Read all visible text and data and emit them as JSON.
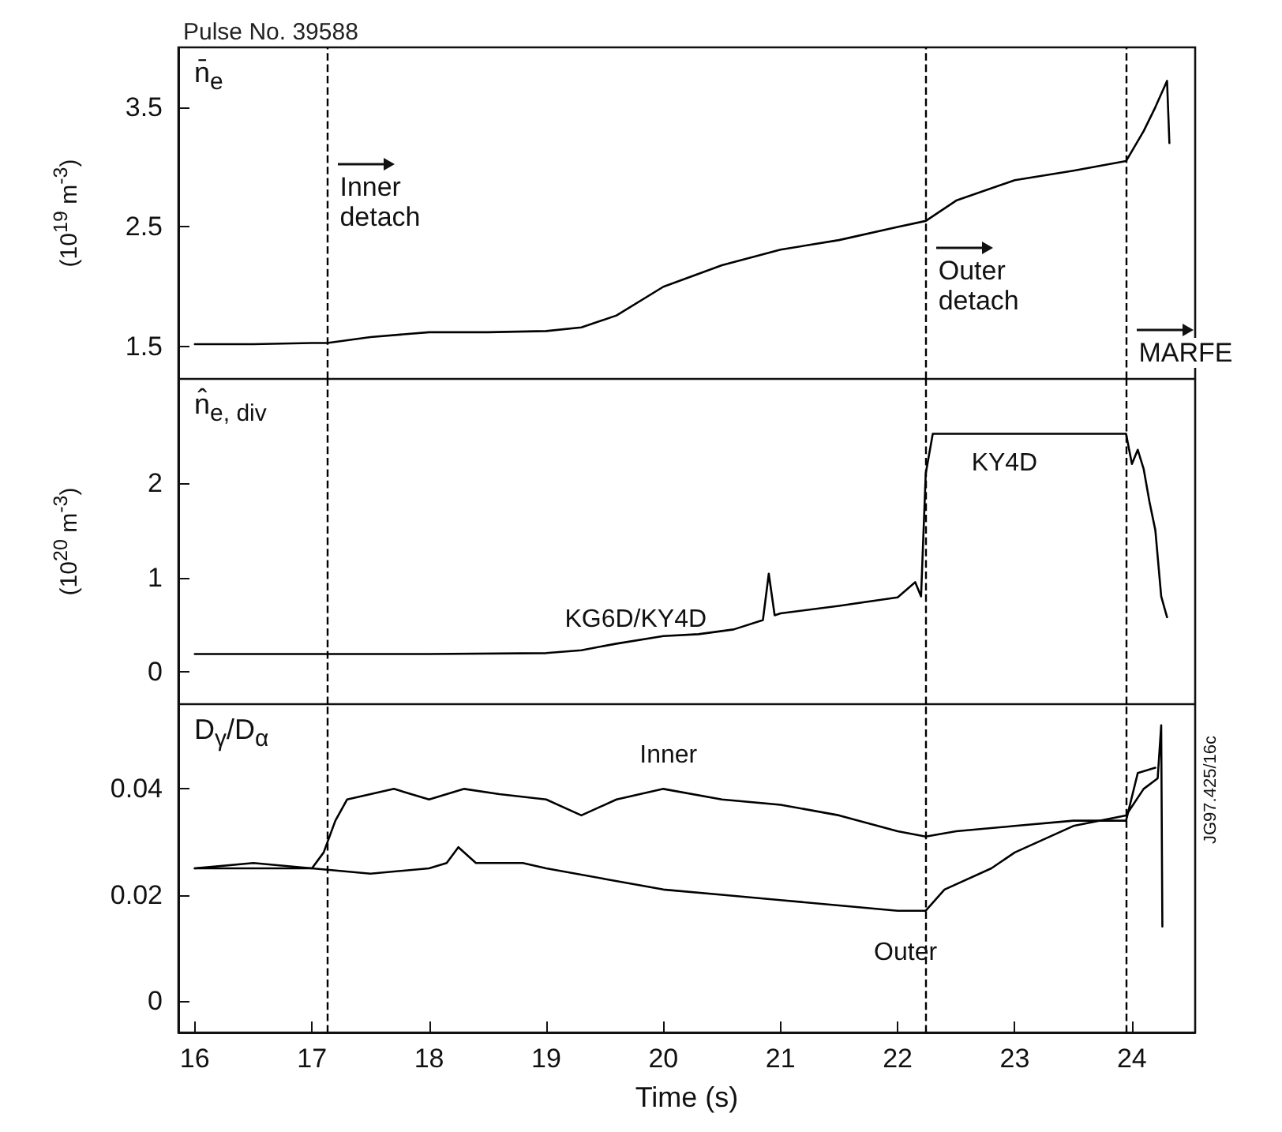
{
  "chart_data": [
    {
      "type": "line",
      "title": "Pulse No. 39588",
      "ylabel": "(10$^{19}$ m$^{-3}$)",
      "annotations": [
        "n̄$_{e}$"
      ],
      "series": [
        {
          "color": "#000000",
          "x": [
            16,
            16.5,
            17,
            17.13,
            17.5,
            18,
            18.5,
            19,
            19.3,
            19.6,
            20,
            20.5,
            21,
            21.5,
            22,
            22.24,
            22.5,
            23,
            23.5,
            23.95,
            24.1,
            24.2,
            24.3,
            24.32
          ],
          "values": [
            1.52,
            1.52,
            1.53,
            1.53,
            1.58,
            1.62,
            1.62,
            1.63,
            1.66,
            1.76,
            2.0,
            2.18,
            2.31,
            2.39,
            2.5,
            2.55,
            2.72,
            2.89,
            2.97,
            3.05,
            3.3,
            3.5,
            3.72,
            3.2
          ]
        }
      ],
      "xlim": [
        15.86,
        24.54
      ],
      "xticks": [
        16,
        17,
        18,
        19,
        20,
        21,
        22,
        23,
        24
      ],
      "ylim": [
        1.23,
        4.0
      ],
      "yticks": [
        1.5,
        2.5,
        3.5
      ],
      "tick_labels": "y",
      "grid": false,
      "legend": false,
      "marker": "none",
      "line_style": "solid",
      "ref_lines": [
        {
          "axis": "x",
          "value": 17.13,
          "label": "Inner detach",
          "line_style": "dashed",
          "color": "#000000"
        },
        {
          "axis": "x",
          "value": 22.24,
          "label": "Outer detach",
          "line_style": "dashed",
          "color": "#000000"
        },
        {
          "axis": "x",
          "value": 23.95,
          "label": "MARFE",
          "line_style": "dashed",
          "color": "#000000"
        }
      ]
    },
    {
      "type": "line",
      "ylabel": "(10$^{20}$ m$^{-3}$)",
      "annotations": [
        "n̂$_{e, div}$",
        "KG6D/KY4D",
        "KY4D"
      ],
      "series": [
        {
          "color": "#000000",
          "x": [
            16,
            17,
            18,
            19,
            19.3,
            19.6,
            20,
            20.3,
            20.6,
            20.85,
            20.9,
            20.95,
            21,
            21.5,
            22,
            22.15,
            22.2,
            22.24,
            22.3,
            22.6,
            23,
            23.5,
            23.95,
            24.0,
            24.05,
            24.1,
            24.15,
            24.2,
            24.25,
            24.3
          ],
          "values": [
            0.19,
            0.19,
            0.19,
            0.2,
            0.23,
            0.3,
            0.38,
            0.4,
            0.45,
            0.55,
            1.04,
            0.6,
            0.62,
            0.7,
            0.79,
            0.95,
            0.8,
            2.1,
            2.52,
            2.52,
            2.52,
            2.52,
            2.52,
            2.2,
            2.35,
            2.15,
            1.8,
            1.5,
            0.8,
            0.58
          ]
        }
      ],
      "xlim": [
        15.86,
        24.54
      ],
      "xticks": [
        16,
        17,
        18,
        19,
        20,
        21,
        22,
        23,
        24
      ],
      "ylim": [
        -0.34,
        3.1
      ],
      "yticks": [
        0,
        1,
        2
      ],
      "tick_labels": "y",
      "grid": false,
      "legend": false,
      "marker": "none",
      "line_style": "solid",
      "ref_lines": [
        {
          "axis": "x",
          "value": 17.13,
          "line_style": "dashed",
          "color": "#000000"
        },
        {
          "axis": "x",
          "value": 22.24,
          "line_style": "dashed",
          "color": "#000000"
        },
        {
          "axis": "x",
          "value": 23.95,
          "line_style": "dashed",
          "color": "#000000"
        }
      ]
    },
    {
      "type": "line",
      "xlabel": "Time (s)",
      "annotations": [
        "D$_{γ}$/D$_{α}$",
        "JG97.425/16c"
      ],
      "series": [
        {
          "name": "Inner",
          "color": "#000000",
          "x": [
            16,
            16.5,
            17,
            17.1,
            17.2,
            17.3,
            17.7,
            18,
            18.3,
            18.6,
            19,
            19.3,
            19.6,
            20,
            20.5,
            21,
            21.5,
            22,
            22.24,
            22.5,
            23,
            23.5,
            23.95,
            24.05,
            24.2
          ],
          "values": [
            0.025,
            0.026,
            0.025,
            0.028,
            0.034,
            0.038,
            0.04,
            0.038,
            0.04,
            0.039,
            0.038,
            0.035,
            0.038,
            0.04,
            0.038,
            0.037,
            0.035,
            0.032,
            0.031,
            0.032,
            0.033,
            0.034,
            0.034,
            0.043,
            0.044
          ]
        },
        {
          "name": "Outer",
          "color": "#000000",
          "x": [
            16,
            17,
            17.5,
            18,
            18.15,
            18.25,
            18.4,
            18.8,
            19,
            19.5,
            20,
            20.5,
            21,
            21.5,
            22,
            22.24,
            22.4,
            22.8,
            23,
            23.5,
            23.95,
            24.1,
            24.22,
            24.25,
            24.26
          ],
          "values": [
            0.025,
            0.025,
            0.024,
            0.025,
            0.026,
            0.029,
            0.026,
            0.026,
            0.025,
            0.023,
            0.021,
            0.02,
            0.019,
            0.018,
            0.017,
            0.017,
            0.021,
            0.025,
            0.028,
            0.033,
            0.035,
            0.04,
            0.042,
            0.052,
            0.014
          ]
        }
      ],
      "xlim": [
        15.86,
        24.54
      ],
      "xticks": [
        16,
        17,
        18,
        19,
        20,
        21,
        22,
        23,
        24
      ],
      "ylim": [
        -0.006,
        0.056
      ],
      "yticks": [
        0,
        0.02,
        0.04
      ],
      "grid": false,
      "legend": false,
      "marker": "none",
      "line_style": "solid",
      "ref_lines": [
        {
          "axis": "x",
          "value": 17.13,
          "line_style": "dashed",
          "color": "#000000"
        },
        {
          "axis": "x",
          "value": 22.24,
          "line_style": "dashed",
          "color": "#000000"
        },
        {
          "axis": "x",
          "value": 23.95,
          "line_style": "dashed",
          "color": "#000000"
        }
      ]
    }
  ]
}
